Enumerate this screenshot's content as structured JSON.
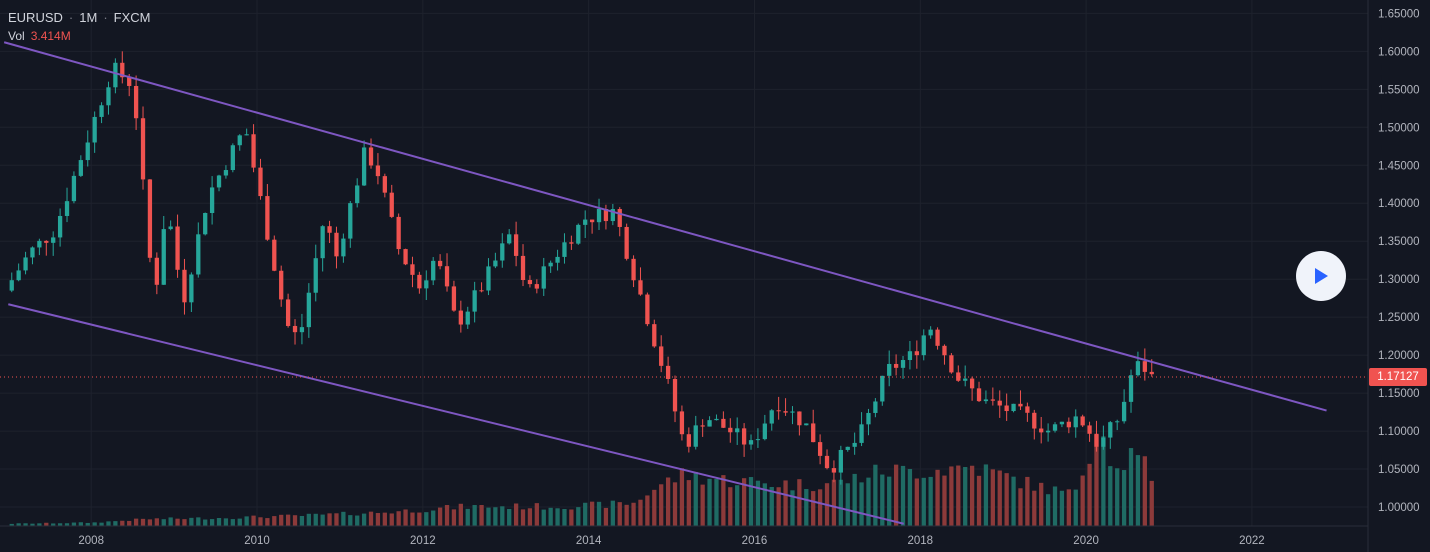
{
  "header": {
    "symbol": "EURUSD",
    "separator": "·",
    "interval": "1M",
    "exchange": "FXCM",
    "vol_label": "Vol",
    "vol_value": "3.414M"
  },
  "current_price": "1.17127",
  "colors": {
    "background": "#131722",
    "up": "#26a69a",
    "down": "#ef5350",
    "vol_up": "#1f6b64",
    "vol_down": "#8c3a3a",
    "trendline": "#7e57c2",
    "price_line": "#f05350",
    "grid": "#1e222d",
    "play_icon": "#2962ff"
  },
  "play_icon": "play-icon",
  "chart_data": {
    "type": "candlestick",
    "interval": "1M",
    "title": "",
    "ylim": [
      0.975,
      1.665
    ],
    "x_range": [
      2006.9,
      2023.4
    ],
    "y_ticks": [
      "1.65000",
      "1.60000",
      "1.55000",
      "1.50000",
      "1.45000",
      "1.40000",
      "1.35000",
      "1.30000",
      "1.25000",
      "1.20000",
      "1.15000",
      "1.10000",
      "1.05000",
      "1.00000"
    ],
    "x_ticks": [
      "2008",
      "2010",
      "2012",
      "2014",
      "2016",
      "2018",
      "2020",
      "2022"
    ],
    "grid": true,
    "last_price": 1.17127,
    "anchors": [
      [
        2007.0,
        1.285
      ],
      [
        2007.3,
        1.335
      ],
      [
        2007.6,
        1.365
      ],
      [
        2007.9,
        1.455
      ],
      [
        2008.3,
        1.578
      ],
      [
        2008.55,
        1.555
      ],
      [
        2008.8,
        1.27
      ],
      [
        2008.95,
        1.4
      ],
      [
        2009.15,
        1.27
      ],
      [
        2009.45,
        1.41
      ],
      [
        2009.9,
        1.5
      ],
      [
        2010.4,
        1.24
      ],
      [
        2010.55,
        1.22
      ],
      [
        2010.85,
        1.38
      ],
      [
        2011.0,
        1.33
      ],
      [
        2011.35,
        1.47
      ],
      [
        2011.5,
        1.44
      ],
      [
        2011.75,
        1.34
      ],
      [
        2012.0,
        1.29
      ],
      [
        2012.2,
        1.33
      ],
      [
        2012.45,
        1.24
      ],
      [
        2012.75,
        1.29
      ],
      [
        2013.1,
        1.36
      ],
      [
        2013.3,
        1.28
      ],
      [
        2013.7,
        1.34
      ],
      [
        2014.0,
        1.38
      ],
      [
        2014.35,
        1.39
      ],
      [
        2014.75,
        1.25
      ],
      [
        2015.0,
        1.16
      ],
      [
        2015.2,
        1.08
      ],
      [
        2015.45,
        1.12
      ],
      [
        2015.75,
        1.1
      ],
      [
        2016.0,
        1.08
      ],
      [
        2016.3,
        1.14
      ],
      [
        2016.65,
        1.11
      ],
      [
        2016.95,
        1.05
      ],
      [
        2017.3,
        1.09
      ],
      [
        2017.65,
        1.18
      ],
      [
        2017.95,
        1.2
      ],
      [
        2018.15,
        1.24
      ],
      [
        2018.5,
        1.17
      ],
      [
        2018.8,
        1.14
      ],
      [
        2019.3,
        1.12
      ],
      [
        2019.6,
        1.1
      ],
      [
        2019.95,
        1.12
      ],
      [
        2020.2,
        1.08
      ],
      [
        2020.45,
        1.12
      ],
      [
        2020.6,
        1.18
      ],
      [
        2020.72,
        1.19
      ],
      [
        2020.8,
        1.171
      ]
    ],
    "volume_levels": [
      [
        2007.0,
        0.02
      ],
      [
        2008.0,
        0.03
      ],
      [
        2008.6,
        0.06
      ],
      [
        2009.5,
        0.07
      ],
      [
        2010.5,
        0.09
      ],
      [
        2011.5,
        0.12
      ],
      [
        2012.5,
        0.17
      ],
      [
        2013.5,
        0.17
      ],
      [
        2014.0,
        0.18
      ],
      [
        2014.5,
        0.2
      ],
      [
        2014.8,
        0.35
      ],
      [
        2015.1,
        0.45
      ],
      [
        2015.6,
        0.4
      ],
      [
        2016.5,
        0.36
      ],
      [
        2017.0,
        0.38
      ],
      [
        2017.5,
        0.48
      ],
      [
        2018.0,
        0.48
      ],
      [
        2018.6,
        0.52
      ],
      [
        2019.3,
        0.36
      ],
      [
        2019.8,
        0.27
      ],
      [
        2020.15,
        0.95
      ],
      [
        2020.3,
        0.45
      ],
      [
        2020.5,
        0.62
      ],
      [
        2020.7,
        0.5
      ],
      [
        2020.8,
        0.22
      ]
    ],
    "trendlines": [
      {
        "points": [
          [
            2006.95,
            1.612
          ],
          [
            2022.9,
            1.127
          ]
        ]
      },
      {
        "points": [
          [
            2007.0,
            1.267
          ],
          [
            2017.8,
            0.978
          ]
        ]
      }
    ],
    "series": [
      {
        "name": "EURUSD",
        "kind": "candles"
      },
      {
        "name": "Vol",
        "kind": "volume"
      }
    ]
  }
}
